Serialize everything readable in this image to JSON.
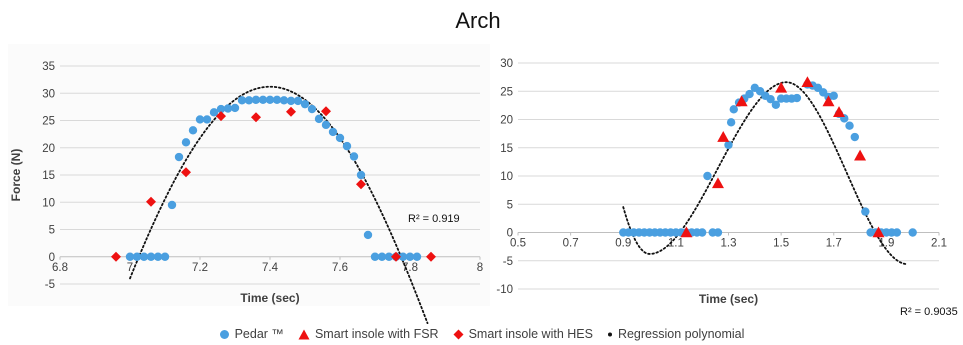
{
  "page_title": "Arch",
  "legend": [
    {
      "label": "Pedar ™",
      "marker": "circle",
      "color": "#4a9fe0"
    },
    {
      "label": "Smart insole with FSR",
      "marker": "triangle",
      "color": "#ee1111"
    },
    {
      "label": "Smart insole with HES",
      "marker": "diamond",
      "color": "#ee1111"
    },
    {
      "label": "Regression polynomial",
      "marker": "dot",
      "color": "#111111"
    }
  ],
  "chart_data": [
    {
      "type": "scatter",
      "xlabel": "Time (sec)",
      "ylabel": "Force (N)",
      "xlim": [
        6.8,
        8
      ],
      "ylim": [
        -5,
        35
      ],
      "x_ticks": [
        6.8,
        7,
        7.2,
        7.4,
        7.6,
        7.8,
        8
      ],
      "x_tick_labels": [
        "6.8",
        "7",
        "7.2",
        "7.4",
        "7.6",
        "7.8",
        "8"
      ],
      "y_ticks": [
        -5,
        0,
        5,
        10,
        15,
        20,
        25,
        30,
        35
      ],
      "y_tick_labels": [
        "-5",
        "0",
        "5",
        "10",
        "15",
        "20",
        "25",
        "30",
        "35"
      ],
      "grid": "horizontal",
      "r2_label": "R² = 0.919",
      "series": [
        {
          "name": "Pedar ™",
          "marker": "circle",
          "color": "#4a9fe0",
          "points": [
            [
              7.0,
              0
            ],
            [
              7.02,
              0
            ],
            [
              7.04,
              0
            ],
            [
              7.06,
              0
            ],
            [
              7.08,
              0
            ],
            [
              7.1,
              0
            ],
            [
              7.12,
              9.5
            ],
            [
              7.14,
              18.3
            ],
            [
              7.16,
              21
            ],
            [
              7.18,
              23.2
            ],
            [
              7.2,
              25.2
            ],
            [
              7.22,
              25.2
            ],
            [
              7.24,
              26.5
            ],
            [
              7.26,
              27.1
            ],
            [
              7.28,
              27.2
            ],
            [
              7.3,
              27.3
            ],
            [
              7.32,
              28.7
            ],
            [
              7.34,
              28.7
            ],
            [
              7.36,
              28.8
            ],
            [
              7.38,
              28.8
            ],
            [
              7.4,
              28.8
            ],
            [
              7.42,
              28.8
            ],
            [
              7.44,
              28.7
            ],
            [
              7.46,
              28.6
            ],
            [
              7.48,
              28.6
            ],
            [
              7.5,
              28
            ],
            [
              7.52,
              27.1
            ],
            [
              7.54,
              25.3
            ],
            [
              7.56,
              24.2
            ],
            [
              7.58,
              22.9
            ],
            [
              7.6,
              21.8
            ],
            [
              7.62,
              20.3
            ],
            [
              7.64,
              18.4
            ],
            [
              7.66,
              15
            ],
            [
              7.68,
              4
            ],
            [
              7.7,
              0
            ],
            [
              7.72,
              0
            ],
            [
              7.74,
              0
            ],
            [
              7.76,
              0
            ],
            [
              7.78,
              0
            ],
            [
              7.8,
              0
            ],
            [
              7.82,
              0
            ]
          ]
        },
        {
          "name": "Smart insole with HES",
          "marker": "diamond",
          "color": "#ee1111",
          "points": [
            [
              6.96,
              0
            ],
            [
              7.06,
              10.1
            ],
            [
              7.16,
              15.5
            ],
            [
              7.26,
              25.8
            ],
            [
              7.36,
              25.6
            ],
            [
              7.46,
              26.6
            ],
            [
              7.56,
              26.7
            ],
            [
              7.66,
              13.3
            ],
            [
              7.76,
              0
            ],
            [
              7.86,
              0
            ]
          ]
        },
        {
          "name": "Regression polynomial",
          "marker": "dot",
          "color": "#111111",
          "function": "cubic-like curve peaking near 31.2 at x=7.4"
        }
      ]
    },
    {
      "type": "scatter",
      "xlabel": "Time (sec)",
      "ylabel": "",
      "xlim": [
        0.5,
        2.1
      ],
      "ylim": [
        -10,
        30
      ],
      "x_ticks": [
        0.5,
        0.7,
        0.9,
        1.1,
        1.3,
        1.5,
        1.7,
        1.9,
        2.1
      ],
      "x_tick_labels": [
        "0.5",
        "0.7",
        "0.9",
        "1.1",
        "1.3",
        "1.5",
        "1.7",
        "1.9",
        "2.1"
      ],
      "y_ticks": [
        -10,
        -5,
        0,
        5,
        10,
        15,
        20,
        25,
        30
      ],
      "y_tick_labels": [
        "-10",
        "-5",
        "0",
        "5",
        "10",
        "15",
        "20",
        "25",
        "30"
      ],
      "grid": "horizontal",
      "r2_label": "R² = 0.9035",
      "series": [
        {
          "name": "Pedar ™",
          "marker": "circle",
          "color": "#4a9fe0",
          "points": [
            [
              0.9,
              0
            ],
            [
              0.92,
              0
            ],
            [
              0.94,
              0
            ],
            [
              0.96,
              0
            ],
            [
              0.98,
              0
            ],
            [
              1.0,
              0
            ],
            [
              1.02,
              0
            ],
            [
              1.04,
              0
            ],
            [
              1.06,
              0
            ],
            [
              1.08,
              0
            ],
            [
              1.1,
              0
            ],
            [
              1.12,
              0
            ],
            [
              1.14,
              0
            ],
            [
              1.16,
              0
            ],
            [
              1.18,
              0
            ],
            [
              1.2,
              0
            ],
            [
              1.22,
              10
            ],
            [
              1.24,
              0
            ],
            [
              1.26,
              0
            ],
            [
              1.3,
              15.5
            ],
            [
              1.31,
              19.5
            ],
            [
              1.32,
              21.8
            ],
            [
              1.34,
              23
            ],
            [
              1.36,
              23.7
            ],
            [
              1.38,
              24.5
            ],
            [
              1.4,
              25.6
            ],
            [
              1.42,
              25
            ],
            [
              1.44,
              24.2
            ],
            [
              1.46,
              23.6
            ],
            [
              1.48,
              22.6
            ],
            [
              1.5,
              23.7
            ],
            [
              1.52,
              23.7
            ],
            [
              1.54,
              23.7
            ],
            [
              1.56,
              23.8
            ],
            [
              1.6,
              26.2
            ],
            [
              1.62,
              26
            ],
            [
              1.64,
              25.6
            ],
            [
              1.66,
              24.8
            ],
            [
              1.68,
              24
            ],
            [
              1.7,
              24.2
            ],
            [
              1.72,
              21
            ],
            [
              1.74,
              20.2
            ],
            [
              1.76,
              18.9
            ],
            [
              1.78,
              16.9
            ],
            [
              1.82,
              3.7
            ],
            [
              1.84,
              0
            ],
            [
              1.86,
              0
            ],
            [
              1.88,
              0
            ],
            [
              1.9,
              0
            ],
            [
              1.92,
              0
            ],
            [
              1.94,
              0
            ],
            [
              2.0,
              0
            ]
          ]
        },
        {
          "name": "Smart insole with FSR",
          "marker": "triangle",
          "color": "#ee1111",
          "points": [
            [
              1.14,
              0
            ],
            [
              1.26,
              8.7
            ],
            [
              1.28,
              16.9
            ],
            [
              1.35,
              23.2
            ],
            [
              1.5,
              25.6
            ],
            [
              1.6,
              26.6
            ],
            [
              1.68,
              23.2
            ],
            [
              1.72,
              21.3
            ],
            [
              1.8,
              13.6
            ],
            [
              1.87,
              0
            ]
          ]
        },
        {
          "name": "Regression polynomial",
          "marker": "dot",
          "color": "#111111",
          "function": "quartic-like curve: dip near -3.8 at x=1.0, peak near 26.6 at x=1.52"
        }
      ]
    }
  ]
}
